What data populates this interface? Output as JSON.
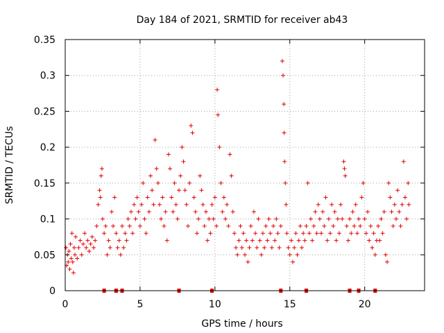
{
  "chart_data": {
    "type": "scatter",
    "title": "Day 184 of 2021, SRMTID for receiver ab43",
    "xlabel": "GPS time / hours",
    "ylabel": "SRMTID / TECUs",
    "xlim": [
      0,
      24
    ],
    "ylim": [
      0,
      0.35
    ],
    "x_ticks": [
      0,
      5,
      10,
      15,
      20
    ],
    "x_tick_labels": [
      "0",
      "5",
      "10",
      "15",
      "20"
    ],
    "y_ticks": [
      0,
      0.05,
      0.1,
      0.15,
      0.2,
      0.25,
      0.3,
      0.35
    ],
    "y_tick_labels": [
      "0",
      "0.05",
      "0.1",
      "0.15",
      "0.2",
      "0.25",
      "0.3",
      "0.35"
    ],
    "grid": true,
    "marker": "+",
    "series_color": "#e00000",
    "baseline_markers_x": [
      2.6,
      3.4,
      3.8,
      7.6,
      9.8,
      14.4,
      16.1,
      19.0,
      19.6,
      20.7
    ],
    "series": [
      {
        "name": "SRMTID",
        "points": [
          [
            0.05,
            0.06
          ],
          [
            0.1,
            0.035
          ],
          [
            0.15,
            0.05
          ],
          [
            0.2,
            0.04
          ],
          [
            0.25,
            0.055
          ],
          [
            0.3,
            0.03
          ],
          [
            0.35,
            0.065
          ],
          [
            0.4,
            0.045
          ],
          [
            0.45,
            0.08
          ],
          [
            0.5,
            0.04
          ],
          [
            0.55,
            0.025
          ],
          [
            0.6,
            0.06
          ],
          [
            0.65,
            0.05
          ],
          [
            0.7,
            0.075
          ],
          [
            0.8,
            0.045
          ],
          [
            0.9,
            0.06
          ],
          [
            1.0,
            0.07
          ],
          [
            1.1,
            0.05
          ],
          [
            1.2,
            0.065
          ],
          [
            1.3,
            0.08
          ],
          [
            1.4,
            0.06
          ],
          [
            1.5,
            0.07
          ],
          [
            1.6,
            0.055
          ],
          [
            1.7,
            0.065
          ],
          [
            1.8,
            0.075
          ],
          [
            1.9,
            0.06
          ],
          [
            2.0,
            0.07
          ],
          [
            2.1,
            0.09
          ],
          [
            2.2,
            0.12
          ],
          [
            2.3,
            0.14
          ],
          [
            2.35,
            0.13
          ],
          [
            2.4,
            0.16
          ],
          [
            2.45,
            0.17
          ],
          [
            2.5,
            0.1
          ],
          [
            2.6,
            0.08
          ],
          [
            2.7,
            0.09
          ],
          [
            2.8,
            0.05
          ],
          [
            2.9,
            0.07
          ],
          [
            3.0,
            0.06
          ],
          [
            3.1,
            0.11
          ],
          [
            3.2,
            0.09
          ],
          [
            3.3,
            0.13
          ],
          [
            3.4,
            0.08
          ],
          [
            3.5,
            0.06
          ],
          [
            3.6,
            0.07
          ],
          [
            3.7,
            0.05
          ],
          [
            3.8,
            0.09
          ],
          [
            3.9,
            0.06
          ],
          [
            4.0,
            0.08
          ],
          [
            4.1,
            0.07
          ],
          [
            4.2,
            0.1
          ],
          [
            4.3,
            0.09
          ],
          [
            4.4,
            0.11
          ],
          [
            4.5,
            0.08
          ],
          [
            4.6,
            0.12
          ],
          [
            4.7,
            0.1
          ],
          [
            4.8,
            0.13
          ],
          [
            4.9,
            0.11
          ],
          [
            5.0,
            0.09
          ],
          [
            5.1,
            0.12
          ],
          [
            5.2,
            0.15
          ],
          [
            5.3,
            0.1
          ],
          [
            5.4,
            0.08
          ],
          [
            5.5,
            0.13
          ],
          [
            5.6,
            0.11
          ],
          [
            5.7,
            0.16
          ],
          [
            5.8,
            0.14
          ],
          [
            5.9,
            0.12
          ],
          [
            6.0,
            0.21
          ],
          [
            6.1,
            0.17
          ],
          [
            6.2,
            0.15
          ],
          [
            6.3,
            0.12
          ],
          [
            6.4,
            0.1
          ],
          [
            6.5,
            0.13
          ],
          [
            6.6,
            0.09
          ],
          [
            6.7,
            0.11
          ],
          [
            6.8,
            0.07
          ],
          [
            6.9,
            0.19
          ],
          [
            7.0,
            0.17
          ],
          [
            7.1,
            0.13
          ],
          [
            7.2,
            0.11
          ],
          [
            7.3,
            0.15
          ],
          [
            7.4,
            0.12
          ],
          [
            7.5,
            0.1
          ],
          [
            7.6,
            0.14
          ],
          [
            7.7,
            0.16
          ],
          [
            7.8,
            0.2
          ],
          [
            7.9,
            0.18
          ],
          [
            8.0,
            0.14
          ],
          [
            8.1,
            0.12
          ],
          [
            8.2,
            0.09
          ],
          [
            8.3,
            0.15
          ],
          [
            8.4,
            0.23
          ],
          [
            8.5,
            0.22
          ],
          [
            8.6,
            0.13
          ],
          [
            8.7,
            0.11
          ],
          [
            8.8,
            0.08
          ],
          [
            8.9,
            0.1
          ],
          [
            9.0,
            0.16
          ],
          [
            9.1,
            0.14
          ],
          [
            9.2,
            0.12
          ],
          [
            9.3,
            0.09
          ],
          [
            9.4,
            0.11
          ],
          [
            9.5,
            0.07
          ],
          [
            9.6,
            0.1
          ],
          [
            9.7,
            0.08
          ],
          [
            9.8,
            0.12
          ],
          [
            9.9,
            0.1
          ],
          [
            10.0,
            0.13
          ],
          [
            10.1,
            0.09
          ],
          [
            10.15,
            0.28
          ],
          [
            10.2,
            0.245
          ],
          [
            10.3,
            0.2
          ],
          [
            10.4,
            0.15
          ],
          [
            10.5,
            0.11
          ],
          [
            10.6,
            0.13
          ],
          [
            10.7,
            0.1
          ],
          [
            10.8,
            0.12
          ],
          [
            10.9,
            0.09
          ],
          [
            11.0,
            0.19
          ],
          [
            11.1,
            0.16
          ],
          [
            11.2,
            0.11
          ],
          [
            11.3,
            0.08
          ],
          [
            11.4,
            0.06
          ],
          [
            11.5,
            0.05
          ],
          [
            11.6,
            0.07
          ],
          [
            11.7,
            0.09
          ],
          [
            11.8,
            0.06
          ],
          [
            11.9,
            0.08
          ],
          [
            12.0,
            0.05
          ],
          [
            12.1,
            0.07
          ],
          [
            12.2,
            0.04
          ],
          [
            12.3,
            0.06
          ],
          [
            12.4,
            0.09
          ],
          [
            12.5,
            0.07
          ],
          [
            12.6,
            0.11
          ],
          [
            12.7,
            0.08
          ],
          [
            12.8,
            0.06
          ],
          [
            12.9,
            0.1
          ],
          [
            13.0,
            0.07
          ],
          [
            13.1,
            0.05
          ],
          [
            13.2,
            0.08
          ],
          [
            13.3,
            0.06
          ],
          [
            13.4,
            0.09
          ],
          [
            13.5,
            0.07
          ],
          [
            13.6,
            0.1
          ],
          [
            13.7,
            0.08
          ],
          [
            13.8,
            0.06
          ],
          [
            13.9,
            0.09
          ],
          [
            14.0,
            0.07
          ],
          [
            14.1,
            0.1
          ],
          [
            14.2,
            0.08
          ],
          [
            14.3,
            0.06
          ],
          [
            14.4,
            0.09
          ],
          [
            14.5,
            0.32
          ],
          [
            14.55,
            0.3
          ],
          [
            14.6,
            0.26
          ],
          [
            14.62,
            0.22
          ],
          [
            14.65,
            0.18
          ],
          [
            14.7,
            0.15
          ],
          [
            14.75,
            0.12
          ],
          [
            14.8,
            0.08
          ],
          [
            14.9,
            0.06
          ],
          [
            15.0,
            0.05
          ],
          [
            15.1,
            0.07
          ],
          [
            15.2,
            0.04
          ],
          [
            15.3,
            0.06
          ],
          [
            15.4,
            0.08
          ],
          [
            15.5,
            0.05
          ],
          [
            15.6,
            0.07
          ],
          [
            15.7,
            0.09
          ],
          [
            15.8,
            0.06
          ],
          [
            15.9,
            0.08
          ],
          [
            16.0,
            0.07
          ],
          [
            16.1,
            0.09
          ],
          [
            16.2,
            0.15
          ],
          [
            16.3,
            0.08
          ],
          [
            16.4,
            0.1
          ],
          [
            16.5,
            0.07
          ],
          [
            16.6,
            0.09
          ],
          [
            16.7,
            0.11
          ],
          [
            16.8,
            0.08
          ],
          [
            16.9,
            0.12
          ],
          [
            17.0,
            0.1
          ],
          [
            17.1,
            0.08
          ],
          [
            17.2,
            0.11
          ],
          [
            17.3,
            0.09
          ],
          [
            17.4,
            0.13
          ],
          [
            17.5,
            0.07
          ],
          [
            17.6,
            0.1
          ],
          [
            17.7,
            0.08
          ],
          [
            17.8,
            0.12
          ],
          [
            17.9,
            0.09
          ],
          [
            18.0,
            0.11
          ],
          [
            18.1,
            0.07
          ],
          [
            18.2,
            0.1
          ],
          [
            18.3,
            0.08
          ],
          [
            18.4,
            0.12
          ],
          [
            18.5,
            0.1
          ],
          [
            18.6,
            0.18
          ],
          [
            18.65,
            0.17
          ],
          [
            18.7,
            0.16
          ],
          [
            18.8,
            0.09
          ],
          [
            18.9,
            0.07
          ],
          [
            19.0,
            0.1
          ],
          [
            19.1,
            0.08
          ],
          [
            19.2,
            0.11
          ],
          [
            19.3,
            0.09
          ],
          [
            19.4,
            0.12
          ],
          [
            19.5,
            0.08
          ],
          [
            19.6,
            0.1
          ],
          [
            19.7,
            0.09
          ],
          [
            19.8,
            0.13
          ],
          [
            19.9,
            0.15
          ],
          [
            20.0,
            0.1
          ],
          [
            20.1,
            0.08
          ],
          [
            20.2,
            0.11
          ],
          [
            20.3,
            0.07
          ],
          [
            20.4,
            0.09
          ],
          [
            20.5,
            0.06
          ],
          [
            20.6,
            0.08
          ],
          [
            20.7,
            0.05
          ],
          [
            20.8,
            0.07
          ],
          [
            20.9,
            0.09
          ],
          [
            21.0,
            0.07
          ],
          [
            21.1,
            0.1
          ],
          [
            21.2,
            0.08
          ],
          [
            21.3,
            0.11
          ],
          [
            21.4,
            0.05
          ],
          [
            21.5,
            0.04
          ],
          [
            21.6,
            0.15
          ],
          [
            21.7,
            0.13
          ],
          [
            21.8,
            0.11
          ],
          [
            21.9,
            0.09
          ],
          [
            22.0,
            0.12
          ],
          [
            22.1,
            0.1
          ],
          [
            22.2,
            0.14
          ],
          [
            22.3,
            0.11
          ],
          [
            22.4,
            0.09
          ],
          [
            22.5,
            0.12
          ],
          [
            22.6,
            0.18
          ],
          [
            22.7,
            0.13
          ],
          [
            22.8,
            0.1
          ],
          [
            22.9,
            0.15
          ],
          [
            22.95,
            0.12
          ]
        ]
      }
    ]
  }
}
